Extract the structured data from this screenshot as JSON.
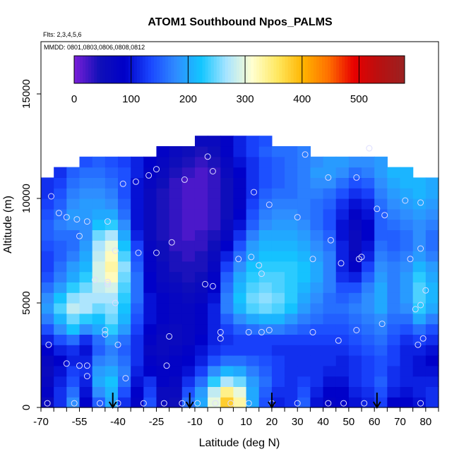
{
  "chart_data": {
    "type": "heatmap",
    "title": "ATOM1 Southbound Npos_PALMS",
    "notes": [
      "Flts: 2,3,4,5,6",
      "MMDD: 0801,0803,0806,0808,0812"
    ],
    "xlabel": "Latitude (deg N)",
    "ylabel": "Altitude (m)",
    "xlim": [
      -70,
      85
    ],
    "ylim": [
      0,
      17500
    ],
    "x_ticks": [
      -70,
      -55,
      -40,
      -25,
      -10,
      0,
      10,
      20,
      30,
      40,
      50,
      60,
      70,
      80
    ],
    "x_tick_labels": [
      "-70",
      "-55",
      "-40",
      "-25",
      "-10",
      "0",
      "10",
      "20",
      "30",
      "40",
      "50",
      "60",
      "70",
      "80"
    ],
    "y_ticks": [
      0,
      5000,
      10000,
      15000
    ],
    "y_tick_labels": [
      "0",
      "5000",
      "10000",
      "15000"
    ],
    "colorbar": {
      "min": 0,
      "max": 580,
      "ticks": [
        0,
        100,
        200,
        300,
        400,
        500
      ],
      "tick_labels": [
        "0",
        "100",
        "200",
        "300",
        "400",
        "500"
      ],
      "colors": [
        "#7b1fd8",
        "#1010b8",
        "#0000c8",
        "#1a46ff",
        "#2f8cff",
        "#13c6ff",
        "#a8e4ff",
        "#ffffd0",
        "#ffe860",
        "#ffb400",
        "#ff7000",
        "#e80000",
        "#b81010",
        "#9a2222"
      ]
    },
    "value_grid": {
      "lat_start": -67.5,
      "lat_step": 5,
      "alt_start": 250,
      "alt_step": 500,
      "rows": [
        [
          60,
          120,
          180,
          90,
          150,
          200,
          120,
          80,
          140,
          60,
          50,
          160,
          200,
          300,
          380,
          330,
          200,
          140,
          110,
          120,
          150,
          100,
          80,
          90,
          100,
          110,
          130,
          90,
          90,
          100,
          120
        ],
        [
          80,
          120,
          160,
          100,
          180,
          210,
          140,
          90,
          130,
          60,
          60,
          140,
          190,
          280,
          340,
          300,
          200,
          150,
          120,
          120,
          140,
          110,
          90,
          90,
          110,
          120,
          140,
          110,
          100,
          110,
          120
        ],
        [
          70,
          110,
          140,
          110,
          200,
          220,
          160,
          100,
          120,
          80,
          70,
          120,
          160,
          230,
          270,
          250,
          190,
          160,
          130,
          120,
          130,
          120,
          100,
          100,
          120,
          130,
          150,
          120,
          110,
          110,
          110
        ],
        [
          60,
          100,
          130,
          120,
          190,
          200,
          170,
          110,
          90,
          80,
          80,
          100,
          130,
          180,
          210,
          200,
          170,
          150,
          130,
          120,
          120,
          120,
          110,
          110,
          120,
          130,
          140,
          120,
          110,
          100,
          100
        ],
        [
          70,
          90,
          110,
          110,
          170,
          180,
          160,
          120,
          80,
          70,
          80,
          90,
          110,
          140,
          160,
          160,
          150,
          140,
          130,
          120,
          120,
          120,
          120,
          110,
          120,
          130,
          140,
          130,
          110,
          100,
          90
        ],
        [
          90,
          110,
          120,
          100,
          150,
          170,
          150,
          120,
          70,
          60,
          70,
          80,
          100,
          120,
          130,
          130,
          130,
          130,
          120,
          120,
          120,
          120,
          120,
          120,
          130,
          140,
          150,
          130,
          110,
          110,
          100
        ],
        [
          110,
          140,
          160,
          120,
          160,
          190,
          160,
          120,
          80,
          60,
          60,
          70,
          90,
          110,
          120,
          130,
          130,
          130,
          130,
          130,
          130,
          130,
          130,
          130,
          140,
          150,
          160,
          140,
          120,
          130,
          120
        ],
        [
          140,
          180,
          220,
          180,
          200,
          230,
          190,
          130,
          90,
          70,
          60,
          70,
          80,
          110,
          130,
          150,
          160,
          170,
          170,
          160,
          150,
          140,
          140,
          140,
          150,
          160,
          170,
          150,
          140,
          160,
          140
        ],
        [
          170,
          210,
          250,
          230,
          220,
          250,
          210,
          140,
          100,
          80,
          70,
          70,
          80,
          110,
          150,
          180,
          200,
          210,
          210,
          190,
          170,
          160,
          150,
          150,
          160,
          170,
          180,
          160,
          160,
          200,
          170
        ],
        [
          190,
          240,
          280,
          270,
          250,
          260,
          220,
          150,
          100,
          80,
          70,
          70,
          80,
          110,
          170,
          210,
          240,
          250,
          240,
          220,
          190,
          170,
          160,
          160,
          170,
          180,
          200,
          170,
          180,
          230,
          200
        ],
        [
          180,
          220,
          260,
          270,
          270,
          270,
          230,
          160,
          100,
          80,
          70,
          60,
          70,
          100,
          170,
          220,
          250,
          260,
          250,
          230,
          200,
          180,
          160,
          150,
          160,
          180,
          200,
          170,
          190,
          240,
          210
        ],
        [
          160,
          190,
          230,
          250,
          280,
          290,
          240,
          160,
          90,
          70,
          60,
          50,
          60,
          90,
          160,
          210,
          240,
          250,
          240,
          230,
          210,
          190,
          170,
          140,
          140,
          170,
          200,
          170,
          190,
          240,
          210
        ],
        [
          140,
          170,
          200,
          230,
          290,
          320,
          250,
          160,
          90,
          60,
          50,
          40,
          50,
          80,
          150,
          200,
          230,
          240,
          240,
          230,
          220,
          200,
          170,
          120,
          110,
          150,
          190,
          170,
          190,
          230,
          200
        ],
        [
          130,
          160,
          190,
          210,
          290,
          330,
          260,
          150,
          80,
          60,
          40,
          40,
          40,
          70,
          130,
          180,
          220,
          230,
          230,
          230,
          220,
          200,
          170,
          110,
          80,
          130,
          180,
          170,
          180,
          210,
          190
        ],
        [
          130,
          150,
          170,
          200,
          280,
          320,
          240,
          140,
          80,
          50,
          40,
          30,
          40,
          60,
          110,
          160,
          200,
          220,
          220,
          220,
          210,
          190,
          170,
          110,
          70,
          110,
          170,
          160,
          170,
          190,
          170
        ],
        [
          140,
          150,
          160,
          190,
          270,
          300,
          220,
          130,
          70,
          50,
          30,
          30,
          30,
          50,
          90,
          140,
          190,
          210,
          210,
          210,
          200,
          180,
          160,
          110,
          60,
          100,
          160,
          150,
          160,
          180,
          160
        ],
        [
          150,
          160,
          160,
          180,
          250,
          270,
          200,
          110,
          60,
          40,
          30,
          20,
          30,
          40,
          70,
          120,
          170,
          200,
          200,
          200,
          190,
          170,
          150,
          100,
          60,
          90,
          150,
          150,
          160,
          180,
          160
        ],
        [
          150,
          170,
          180,
          180,
          220,
          230,
          180,
          100,
          60,
          40,
          30,
          20,
          20,
          30,
          60,
          100,
          150,
          180,
          190,
          190,
          180,
          160,
          140,
          100,
          70,
          90,
          150,
          160,
          170,
          180,
          170
        ],
        [
          140,
          160,
          190,
          190,
          200,
          200,
          160,
          100,
          60,
          40,
          30,
          20,
          20,
          30,
          50,
          90,
          140,
          170,
          180,
          180,
          170,
          160,
          140,
          110,
          80,
          100,
          150,
          170,
          180,
          190,
          180
        ],
        [
          130,
          150,
          180,
          190,
          190,
          180,
          150,
          100,
          60,
          40,
          30,
          20,
          20,
          30,
          50,
          80,
          130,
          160,
          170,
          170,
          170,
          160,
          150,
          120,
          100,
          110,
          160,
          180,
          190,
          200,
          190
        ],
        [
          120,
          140,
          170,
          180,
          180,
          170,
          140,
          100,
          60,
          40,
          30,
          20,
          20,
          30,
          50,
          80,
          120,
          150,
          160,
          160,
          170,
          170,
          160,
          140,
          120,
          130,
          170,
          190,
          200,
          210,
          200
        ],
        [
          120,
          130,
          160,
          170,
          170,
          160,
          140,
          100,
          70,
          50,
          30,
          20,
          20,
          30,
          50,
          80,
          120,
          140,
          150,
          160,
          170,
          180,
          180,
          160,
          140,
          150,
          180,
          200,
          210,
          210,
          200
        ],
        [
          null,
          120,
          150,
          160,
          160,
          150,
          140,
          110,
          80,
          60,
          40,
          30,
          20,
          30,
          60,
          90,
          120,
          140,
          150,
          160,
          170,
          190,
          190,
          180,
          160,
          170,
          190,
          210,
          210,
          null,
          null
        ],
        [
          null,
          null,
          null,
          140,
          150,
          140,
          130,
          110,
          90,
          70,
          50,
          40,
          30,
          40,
          70,
          100,
          120,
          140,
          150,
          160,
          170,
          180,
          190,
          190,
          180,
          180,
          190,
          null,
          null,
          null,
          null
        ],
        [
          null,
          null,
          null,
          null,
          null,
          null,
          null,
          null,
          null,
          80,
          60,
          50,
          40,
          50,
          80,
          110,
          130,
          150,
          160,
          160,
          170,
          null,
          null,
          null,
          null,
          null,
          null,
          null,
          null,
          null,
          null
        ],
        [
          null,
          null,
          null,
          null,
          null,
          null,
          null,
          null,
          null,
          null,
          null,
          null,
          60,
          60,
          80,
          110,
          130,
          140,
          null,
          null,
          null,
          null,
          null,
          null,
          null,
          null,
          null,
          null,
          null,
          null,
          null
        ]
      ]
    },
    "markers": [
      [
        -67.5,
        200
      ],
      [
        -57,
        200
      ],
      [
        -47,
        200
      ],
      [
        -40,
        200
      ],
      [
        -30,
        200
      ],
      [
        -22,
        200
      ],
      [
        -15,
        200
      ],
      [
        -9,
        200
      ],
      [
        -2,
        200
      ],
      [
        4,
        200
      ],
      [
        11,
        200
      ],
      [
        20,
        200
      ],
      [
        30,
        200
      ],
      [
        42,
        200
      ],
      [
        48,
        200
      ],
      [
        56,
        200
      ],
      [
        78,
        200
      ],
      [
        -67,
        3000
      ],
      [
        -60,
        2100
      ],
      [
        -55,
        2000
      ],
      [
        -52,
        1500
      ],
      [
        -37,
        1400
      ],
      [
        -21,
        2000
      ],
      [
        -40,
        3000
      ],
      [
        -45,
        3500
      ],
      [
        -45,
        3700
      ],
      [
        -20,
        3400
      ],
      [
        0,
        3600
      ],
      [
        0,
        3300
      ],
      [
        11,
        3600
      ],
      [
        16,
        3600
      ],
      [
        19,
        3700
      ],
      [
        36,
        3600
      ],
      [
        46,
        3200
      ],
      [
        53,
        3700
      ],
      [
        63,
        4000
      ],
      [
        77,
        3000
      ],
      [
        79,
        3300
      ],
      [
        -52,
        2000
      ],
      [
        -25,
        7400
      ],
      [
        -32,
        7400
      ],
      [
        -19,
        7900
      ],
      [
        -41,
        7500
      ],
      [
        -44,
        6000
      ],
      [
        -44,
        5900
      ],
      [
        -41,
        5000
      ],
      [
        -3,
        5800
      ],
      [
        -6,
        5900
      ],
      [
        7,
        7100
      ],
      [
        12,
        7200
      ],
      [
        15,
        6800
      ],
      [
        16,
        6400
      ],
      [
        36,
        7100
      ],
      [
        43,
        8000
      ],
      [
        47,
        6900
      ],
      [
        54,
        7100
      ],
      [
        55,
        7200
      ],
      [
        74,
        7100
      ],
      [
        78,
        7600
      ],
      [
        80,
        5600
      ],
      [
        78,
        4900
      ],
      [
        76,
        4700
      ],
      [
        -66,
        10100
      ],
      [
        -63,
        9300
      ],
      [
        -60,
        9100
      ],
      [
        -56,
        9000
      ],
      [
        -52,
        8900
      ],
      [
        -55,
        8200
      ],
      [
        -44,
        8900
      ],
      [
        -49,
        6100
      ],
      [
        -38,
        10700
      ],
      [
        -33,
        10800
      ],
      [
        -28,
        11100
      ],
      [
        -25,
        11400
      ],
      [
        -14,
        10900
      ],
      [
        -3,
        11300
      ],
      [
        -5,
        12000
      ],
      [
        13,
        10300
      ],
      [
        19,
        9700
      ],
      [
        30,
        9100
      ],
      [
        33,
        12100
      ],
      [
        42,
        11000
      ],
      [
        53,
        11000
      ],
      [
        58,
        12400
      ],
      [
        61,
        9500
      ],
      [
        64,
        9200
      ],
      [
        72,
        9900
      ],
      [
        78,
        9800
      ]
    ],
    "arrows_lat": [
      -42,
      -12,
      20,
      61
    ]
  }
}
